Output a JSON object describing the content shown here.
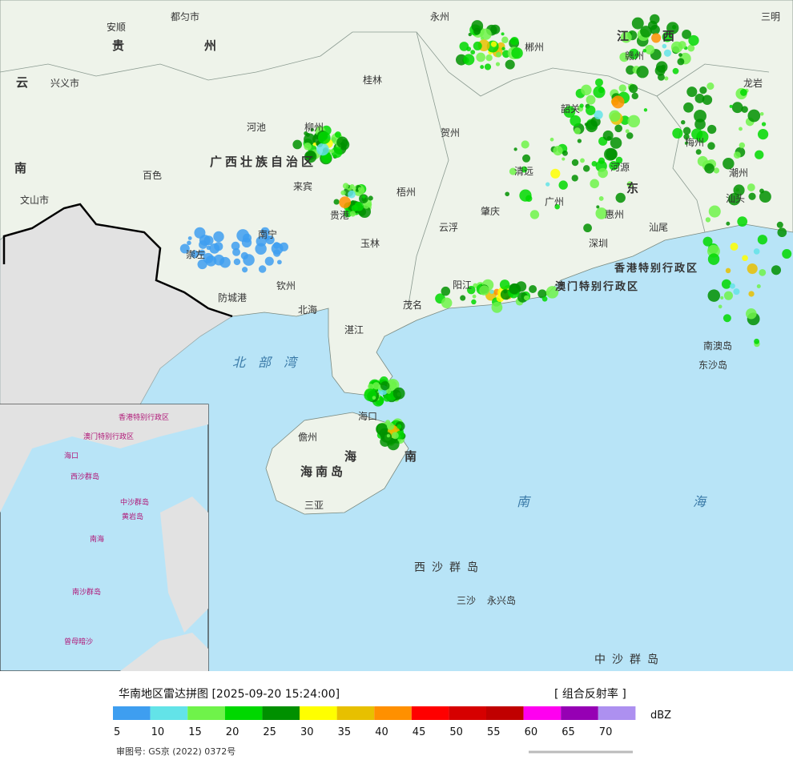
{
  "title": "华南地区雷达拼图 [2025-09-20 15:24:00]",
  "product": "[ 组合反射率 ]",
  "review_number": "审图号: GS京 (2022) 0372号",
  "legend": {
    "unit": "dBZ",
    "ticks": [
      5,
      10,
      15,
      20,
      25,
      30,
      35,
      40,
      45,
      50,
      55,
      60,
      65,
      70
    ],
    "colors": [
      "#3e9ef0",
      "#63e3e8",
      "#6ff34a",
      "#00d800",
      "#009000",
      "#ffff00",
      "#e7c000",
      "#ff9000",
      "#ff0000",
      "#d60000",
      "#c00000",
      "#ff00f0",
      "#9600b4",
      "#ad90f0"
    ]
  },
  "map": {
    "labels": [
      "安顺",
      "都匀市",
      "贵",
      "州",
      "永州",
      "郴州",
      "江",
      "西",
      "赣州",
      "三明",
      "云",
      "兴义市",
      "桂林",
      "龙岩",
      "河池",
      "柳州",
      "贺州",
      "韶关",
      "梅州",
      "广西壮族自治区",
      "南",
      "百色",
      "来宾",
      "河源",
      "清远",
      "潮州",
      "梧州",
      "东",
      "汕头",
      "文山市",
      "贵港",
      "广州",
      "惠州",
      "南宁",
      "云浮",
      "汕尾",
      "玉林",
      "肇庆",
      "崇左",
      "深圳",
      "香港特别行政区",
      "阳江",
      "澳门特别行政区",
      "钦州",
      "防城港",
      "北海",
      "茂名",
      "湛江",
      "北部湾",
      "南澳岛",
      "东沙岛",
      "海口",
      "儋州",
      "海",
      "南",
      "海南岛",
      "三亚",
      "南",
      "海",
      "西沙群岛",
      "三沙",
      "永兴岛",
      "中沙群岛"
    ],
    "inset_labels": [
      "南海",
      "中沙群岛",
      "黄岩岛",
      "西沙群岛",
      "南沙群岛",
      "曾母暗沙",
      "海口",
      "香港特别行政区",
      "澳门特别行政区"
    ]
  }
}
